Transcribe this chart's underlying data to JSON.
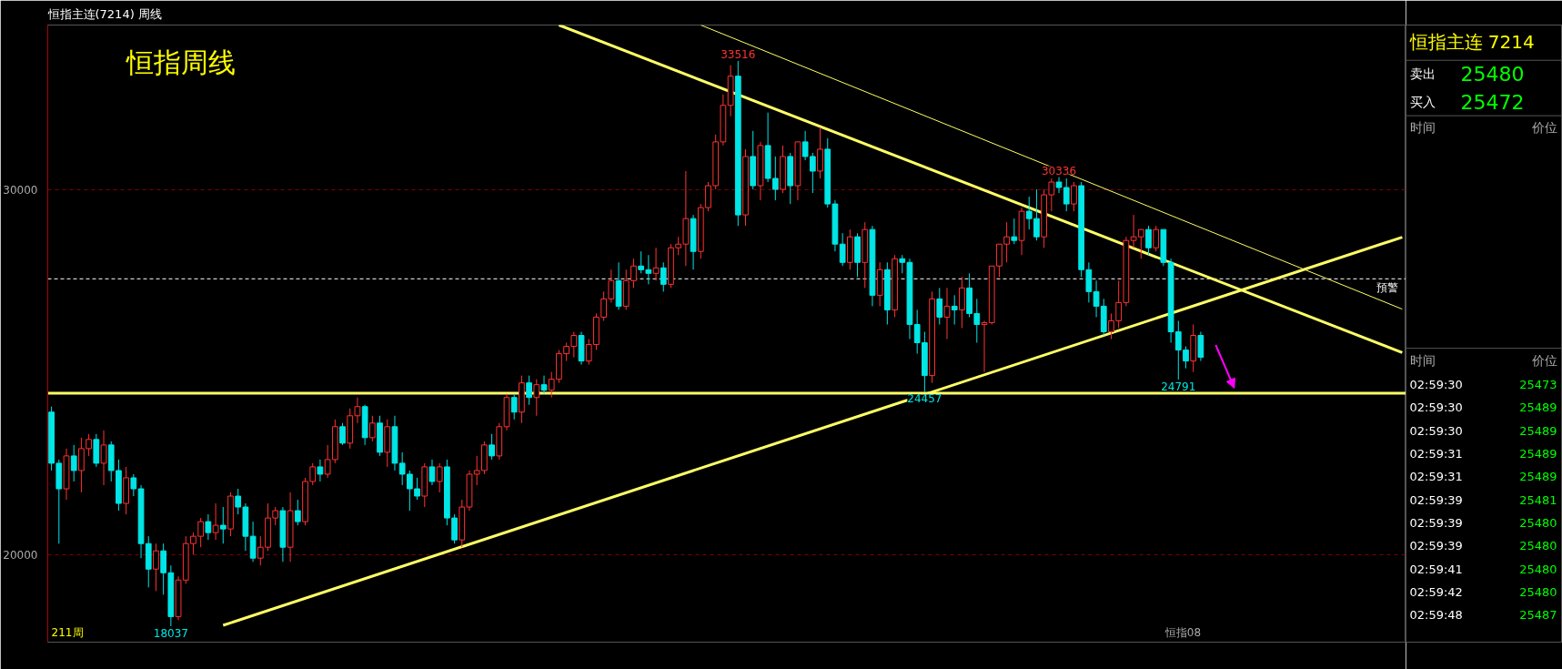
{
  "chart_data": {
    "type": "candlestick",
    "title": "恒指周线",
    "subtitle": "恒指主连(7214)  周线",
    "categories": [
      null,
      null,
      null,
      null,
      null,
      null,
      null,
      null,
      null,
      null,
      null,
      null,
      null,
      null,
      null,
      null,
      null,
      null,
      null,
      null,
      null,
      null,
      null,
      null,
      null,
      null,
      null,
      null,
      null,
      null,
      null,
      null,
      null,
      null,
      null,
      null,
      null,
      null,
      null,
      null,
      null,
      null,
      null,
      null,
      null,
      null,
      null,
      null,
      null,
      null,
      null,
      null,
      null,
      null,
      null,
      null,
      null,
      null,
      null,
      null,
      null,
      null,
      null,
      null,
      null,
      null,
      null,
      null,
      null,
      null,
      null,
      null,
      null,
      null,
      null,
      null,
      null,
      null,
      null,
      null,
      null,
      null,
      null,
      null,
      null,
      null,
      null,
      null,
      null,
      null,
      null,
      null,
      null,
      null,
      null,
      null,
      null,
      null,
      null,
      null,
      null,
      null,
      null,
      null,
      null,
      null,
      null,
      null,
      null,
      null,
      null,
      null,
      null,
      null,
      null,
      null,
      null,
      null,
      null,
      null,
      null,
      null,
      null,
      null,
      null,
      null,
      null,
      null,
      null,
      null,
      null,
      null,
      null,
      null,
      null,
      null,
      null,
      null,
      null,
      null,
      null,
      null,
      null,
      null,
      null,
      null,
      null,
      null,
      null,
      null,
      null,
      null,
      null,
      null,
      null,
      null,
      null,
      null,
      null,
      null,
      null,
      null,
      null,
      null,
      null,
      null,
      null,
      null,
      null,
      null,
      null,
      null,
      null,
      null,
      null,
      null,
      null,
      null,
      null,
      null,
      null,
      null
    ],
    "ohlc": [
      [
        23900,
        24050,
        22300,
        22500
      ],
      [
        22500,
        22600,
        20300,
        21800
      ],
      [
        21800,
        22900,
        21500,
        22700
      ],
      [
        22700,
        23000,
        22000,
        22300
      ],
      [
        22300,
        23200,
        21700,
        22900
      ],
      [
        22900,
        23300,
        22700,
        23150
      ],
      [
        23150,
        23300,
        22400,
        22500
      ],
      [
        22500,
        23400,
        21900,
        23000
      ],
      [
        23000,
        23100,
        22000,
        22300
      ],
      [
        22300,
        22600,
        21200,
        21400
      ],
      [
        21400,
        22400,
        21100,
        22100
      ],
      [
        22100,
        22200,
        21600,
        21800
      ],
      [
        21800,
        21900,
        19900,
        20300
      ],
      [
        20300,
        20500,
        19100,
        19600
      ],
      [
        19600,
        20300,
        19000,
        20100
      ],
      [
        20100,
        20300,
        18900,
        19500
      ],
      [
        19500,
        19700,
        18037,
        18300
      ],
      [
        18300,
        19400,
        18200,
        19300
      ],
      [
        19300,
        20500,
        19200,
        20300
      ],
      [
        20300,
        20600,
        20000,
        20500
      ],
      [
        20500,
        21000,
        20200,
        20900
      ],
      [
        20900,
        21100,
        20400,
        20600
      ],
      [
        20600,
        21400,
        20400,
        20800
      ],
      [
        20800,
        21300,
        20300,
        20700
      ],
      [
        20700,
        21700,
        20500,
        21600
      ],
      [
        21600,
        21800,
        21100,
        21300
      ],
      [
        21300,
        21400,
        20100,
        20500
      ],
      [
        20500,
        20900,
        19800,
        19900
      ],
      [
        19900,
        20500,
        19700,
        20200
      ],
      [
        20200,
        21400,
        20100,
        21000
      ],
      [
        21000,
        21300,
        20800,
        21200
      ],
      [
        21200,
        21300,
        19800,
        20200
      ],
      [
        20200,
        21700,
        19800,
        21200
      ],
      [
        21200,
        21500,
        20800,
        20900
      ],
      [
        20900,
        22100,
        20800,
        22000
      ],
      [
        22000,
        22500,
        21900,
        22400
      ],
      [
        22400,
        22600,
        22000,
        22200
      ],
      [
        22200,
        23000,
        22100,
        22600
      ],
      [
        22600,
        23700,
        22500,
        23500
      ],
      [
        23500,
        23600,
        23000,
        23050
      ],
      [
        23050,
        24000,
        22900,
        23800
      ],
      [
        23800,
        24300,
        23600,
        24050
      ],
      [
        24050,
        24100,
        23000,
        23200
      ],
      [
        23200,
        23800,
        23100,
        23600
      ],
      [
        23600,
        23800,
        22700,
        22800
      ],
      [
        22800,
        23700,
        22400,
        23500
      ],
      [
        23500,
        23800,
        22300,
        22500
      ],
      [
        22500,
        22800,
        21900,
        22200
      ],
      [
        22200,
        22300,
        21200,
        21800
      ],
      [
        21800,
        22100,
        21500,
        21600
      ],
      [
        21600,
        22500,
        21300,
        22400
      ],
      [
        22400,
        22600,
        21900,
        22000
      ],
      [
        22000,
        22500,
        21700,
        22400
      ],
      [
        22400,
        22600,
        20800,
        21000
      ],
      [
        21000,
        21100,
        20300,
        20400
      ],
      [
        20400,
        21500,
        20200,
        21300
      ],
      [
        21300,
        22300,
        21200,
        22200
      ],
      [
        22200,
        22700,
        21900,
        22300
      ],
      [
        22300,
        23100,
        22200,
        23000
      ],
      [
        23000,
        23300,
        22600,
        22700
      ],
      [
        22700,
        23600,
        22600,
        23500
      ],
      [
        23500,
        24400,
        23400,
        24300
      ],
      [
        24300,
        24400,
        23700,
        23900
      ],
      [
        23900,
        24900,
        23600,
        24700
      ],
      [
        24700,
        24900,
        24100,
        24300
      ],
      [
        24300,
        24800,
        23800,
        24650
      ],
      [
        24650,
        24900,
        24400,
        24500
      ],
      [
        24500,
        25000,
        24300,
        24800
      ],
      [
        24800,
        25600,
        24700,
        25500
      ],
      [
        25500,
        25800,
        25300,
        25700
      ],
      [
        25700,
        26100,
        25400,
        26000
      ],
      [
        26000,
        26100,
        25200,
        25300
      ],
      [
        25300,
        25900,
        25200,
        25750
      ],
      [
        25750,
        26600,
        25600,
        26500
      ],
      [
        26500,
        27200,
        26400,
        27000
      ],
      [
        27000,
        27800,
        26900,
        27500
      ],
      [
        27500,
        28000,
        26700,
        26800
      ],
      [
        26800,
        27800,
        26700,
        27500
      ],
      [
        27500,
        28100,
        27300,
        27900
      ],
      [
        27900,
        28300,
        27700,
        27800
      ],
      [
        27800,
        28200,
        27400,
        27700
      ],
      [
        27700,
        28400,
        27500,
        27850
      ],
      [
        27850,
        28000,
        27200,
        27400
      ],
      [
        27400,
        28500,
        27300,
        28400
      ],
      [
        28400,
        28700,
        28200,
        28500
      ],
      [
        28500,
        30500,
        27900,
        29200
      ],
      [
        29200,
        29300,
        27800,
        28300
      ],
      [
        28300,
        29600,
        28100,
        29500
      ],
      [
        29500,
        30200,
        29400,
        30100
      ],
      [
        30100,
        31500,
        30000,
        31300
      ],
      [
        31300,
        32600,
        31200,
        32300
      ],
      [
        32300,
        33400,
        32000,
        33100
      ],
      [
        33100,
        33516,
        29000,
        29300
      ],
      [
        29300,
        31100,
        29000,
        30900
      ],
      [
        30900,
        31600,
        30000,
        30100
      ],
      [
        30100,
        31300,
        29700,
        31200
      ],
      [
        31200,
        32100,
        30200,
        30300
      ],
      [
        30300,
        30900,
        29700,
        30000
      ],
      [
        30000,
        31200,
        29900,
        30900
      ],
      [
        30900,
        31000,
        29600,
        30100
      ],
      [
        30100,
        31300,
        29700,
        31300
      ],
      [
        31300,
        31600,
        30800,
        30900
      ],
      [
        30900,
        31000,
        29900,
        30500
      ],
      [
        30500,
        31700,
        30300,
        31100
      ],
      [
        31100,
        31400,
        29500,
        29600
      ],
      [
        29600,
        29700,
        28300,
        28500
      ],
      [
        28500,
        28800,
        27900,
        28000
      ],
      [
        28000,
        28900,
        27800,
        28700
      ],
      [
        28700,
        28800,
        27600,
        28000
      ],
      [
        28000,
        29100,
        27300,
        28900
      ],
      [
        28900,
        29000,
        26800,
        27100
      ],
      [
        27100,
        28000,
        26800,
        27800
      ],
      [
        27800,
        28000,
        26300,
        26700
      ],
      [
        26700,
        28200,
        26500,
        28100
      ],
      [
        28100,
        28200,
        27700,
        28000
      ],
      [
        28000,
        28100,
        25900,
        26300
      ],
      [
        26300,
        26700,
        25500,
        25800
      ],
      [
        25800,
        26100,
        24457,
        24900
      ],
      [
        24900,
        27200,
        24700,
        27000
      ],
      [
        27000,
        27300,
        26300,
        26500
      ],
      [
        26500,
        27300,
        25900,
        26800
      ],
      [
        26800,
        27100,
        26300,
        26700
      ],
      [
        26700,
        27600,
        26200,
        27300
      ],
      [
        27300,
        27700,
        26500,
        26600
      ],
      [
        26600,
        27000,
        25800,
        26300
      ],
      [
        26300,
        26400,
        25000,
        26350
      ],
      [
        26350,
        27900,
        26300,
        27900
      ],
      [
        27900,
        28500,
        27600,
        28500
      ],
      [
        28500,
        29100,
        28000,
        28700
      ],
      [
        28700,
        29200,
        28500,
        28600
      ],
      [
        28600,
        29500,
        28200,
        29400
      ],
      [
        29400,
        29800,
        28900,
        29200
      ],
      [
        29200,
        30000,
        28600,
        28700
      ],
      [
        28700,
        30000,
        28400,
        29850
      ],
      [
        29850,
        30300,
        29400,
        30200
      ],
      [
        30200,
        30336,
        29900,
        30050
      ],
      [
        30050,
        30300,
        29400,
        29600
      ],
      [
        29600,
        30200,
        29400,
        30100
      ],
      [
        30100,
        30200,
        27600,
        27800
      ],
      [
        27800,
        28000,
        26900,
        27200
      ],
      [
        27200,
        27500,
        26500,
        26800
      ],
      [
        26800,
        27000,
        26000,
        26100
      ],
      [
        26100,
        26600,
        25900,
        26400
      ],
      [
        26400,
        27500,
        26200,
        26900
      ],
      [
        26900,
        28700,
        26800,
        28600
      ],
      [
        28600,
        29300,
        28400,
        28700
      ],
      [
        28700,
        28900,
        28100,
        28900
      ],
      [
        28900,
        29000,
        28200,
        28400
      ],
      [
        28400,
        29000,
        28300,
        28900
      ],
      [
        28900,
        28900,
        27900,
        28000
      ],
      [
        28000,
        28100,
        25800,
        26100
      ],
      [
        26100,
        26400,
        24791,
        25600
      ],
      [
        25600,
        25700,
        25100,
        25300
      ],
      [
        25300,
        26300,
        25000,
        26000
      ],
      [
        26000,
        26100,
        25300,
        25400
      ],
      null,
      null,
      null,
      null,
      null,
      null,
      null,
      null,
      null,
      null,
      null,
      null,
      null,
      null,
      null,
      null,
      null,
      null,
      null,
      null,
      null,
      null,
      null,
      null,
      null,
      null,
      null
    ],
    "colors": [
      "#00e5e5",
      "#00e5e5",
      "#ff3232",
      "#00e5e5",
      "#ff3232",
      "#ff3232",
      "#00e5e5",
      "#ff3232",
      "#00e5e5",
      "#00e5e5",
      "#ff3232",
      "#00e5e5",
      "#00e5e5",
      "#00e5e5",
      "#ff3232",
      "#00e5e5",
      "#00e5e5",
      "#ff3232",
      "#ff3232",
      "#ff3232",
      "#ff3232",
      "#00e5e5",
      "#ff3232",
      "#00e5e5",
      "#ff3232",
      "#00e5e5",
      "#00e5e5",
      "#00e5e5",
      "#ff3232",
      "#ff3232",
      "#ff3232",
      "#00e5e5",
      "#ff3232",
      "#00e5e5",
      "#ff3232",
      "#ff3232",
      "#00e5e5",
      "#ff3232",
      "#ff3232",
      "#00e5e5",
      "#ff3232",
      "#ff3232",
      "#00e5e5",
      "#ff3232",
      "#00e5e5",
      "#ff3232",
      "#00e5e5",
      "#00e5e5",
      "#00e5e5",
      "#00e5e5",
      "#ff3232",
      "#00e5e5",
      "#ff3232",
      "#00e5e5",
      "#00e5e5",
      "#ff3232",
      "#ff3232",
      "#ff3232",
      "#ff3232",
      "#00e5e5",
      "#ff3232",
      "#ff3232",
      "#00e5e5",
      "#ff3232",
      "#00e5e5",
      "#ff3232",
      "#00e5e5",
      "#ff3232",
      "#ff3232",
      "#ff3232",
      "#ff3232",
      "#00e5e5",
      "#ff3232",
      "#ff3232",
      "#ff3232",
      "#ff3232",
      "#00e5e5",
      "#ff3232",
      "#ff3232",
      "#00e5e5",
      "#00e5e5",
      "#ff3232",
      "#00e5e5",
      "#ff3232",
      "#ff3232",
      "#ff3232",
      "#00e5e5",
      "#ff3232",
      "#ff3232",
      "#ff3232",
      "#ff3232",
      "#ff3232",
      "#00e5e5",
      "#ff3232",
      "#00e5e5",
      "#ff3232",
      "#00e5e5",
      "#00e5e5",
      "#ff3232",
      "#00e5e5",
      "#ff3232",
      "#00e5e5",
      "#00e5e5",
      "#ff3232",
      "#00e5e5",
      "#00e5e5",
      "#00e5e5",
      "#ff3232",
      "#00e5e5",
      "#ff3232",
      "#00e5e5",
      "#ff3232",
      "#00e5e5",
      "#ff3232",
      "#00e5e5",
      "#00e5e5",
      "#00e5e5",
      "#00e5e5",
      "#ff3232",
      "#00e5e5",
      "#ff3232",
      "#00e5e5",
      "#ff3232",
      "#00e5e5",
      "#00e5e5",
      "#ff3232",
      "#ff3232",
      "#ff3232",
      "#ff3232",
      "#00e5e5",
      "#ff3232",
      "#00e5e5",
      "#00e5e5",
      "#ff3232",
      "#ff3232",
      "#00e5e5",
      "#00e5e5",
      "#ff3232",
      "#00e5e5",
      "#00e5e5",
      "#00e5e5",
      "#00e5e5",
      "#ff3232",
      "#ff3232",
      "#ff3232",
      "#ff3232",
      "#ff3232",
      "#00e5e5",
      "#ff3232",
      "#00e5e5",
      "#00e5e5",
      "#00e5e5",
      "#00e5e5",
      "#ff3232",
      "#00e5e5",
      null,
      null,
      null,
      null,
      null,
      null,
      null,
      null,
      null,
      null,
      null,
      null,
      null,
      null,
      null,
      null,
      null,
      null,
      null,
      null,
      null,
      null,
      null,
      null,
      null,
      null,
      null
    ],
    "series": [
      {
        "type": "line",
        "color": "#ffff66",
        "values": [
          null,
          null,
          null,
          null,
          null,
          null,
          null,
          null,
          null,
          null,
          null,
          null,
          null,
          null,
          null,
          null,
          null,
          null,
          null,
          null,
          null,
          null,
          null,
          null,
          null,
          null,
          null,
          null,
          null,
          null,
          null,
          null,
          null,
          null,
          null,
          null,
          null,
          null,
          null,
          null,
          null,
          null,
          null,
          null,
          null,
          null,
          null,
          null,
          null,
          null,
          null,
          null,
          null,
          null,
          null,
          null,
          null,
          null,
          null,
          null,
          null,
          null,
          null,
          null,
          null,
          null,
          null,
          null,
          34500,
          null,
          null,
          null,
          null,
          null,
          null,
          null,
          null,
          null,
          null,
          null,
          null,
          null,
          null,
          null,
          null,
          null,
          null,
          null,
          null,
          null,
          null,
          null,
          null,
          null,
          null,
          null,
          null,
          null,
          null,
          null,
          null,
          null,
          null,
          null,
          null,
          null,
          null,
          null,
          null,
          null,
          null,
          null,
          null,
          null,
          null,
          null,
          null,
          null,
          null,
          null,
          null,
          null,
          null,
          null,
          null,
          null,
          null,
          null,
          null,
          null,
          null,
          null,
          null,
          null,
          null,
          null,
          null,
          null,
          null,
          null,
          null,
          null,
          null,
          null,
          null,
          null,
          null,
          null,
          null,
          null,
          null,
          null,
          null,
          null,
          null,
          null,
          null,
          null,
          null,
          null,
          null,
          null,
          null,
          null,
          null,
          null,
          null,
          null,
          null,
          null,
          null,
          null,
          null,
          null,
          null,
          null,
          null,
          null,
          null,
          null,
          null,
          25530
        ]
      },
      {
        "type": "line",
        "color": "#ffff66",
        "values": [
          null,
          null,
          null,
          null,
          null,
          null,
          null,
          null,
          null,
          null,
          null,
          null,
          null,
          null,
          null,
          null,
          null,
          null,
          null,
          null,
          null,
          null,
          null,
          null,
          null,
          null,
          null,
          null,
          null,
          null,
          null,
          null,
          null,
          null,
          null,
          null,
          null,
          null,
          null,
          null,
          null,
          null,
          null,
          null,
          null,
          null,
          null,
          null,
          null,
          null,
          null,
          null,
          null,
          null,
          null,
          null,
          null,
          null,
          null,
          null,
          null,
          null,
          null,
          null,
          null,
          null,
          null,
          null,
          null,
          null,
          null,
          null,
          null,
          null,
          null,
          null,
          null,
          null,
          null,
          null,
          null,
          null,
          null,
          null,
          null,
          null,
          null,
          34500,
          null,
          null,
          null,
          null,
          null,
          null,
          null,
          null,
          null,
          null,
          null,
          null,
          null,
          null,
          null,
          null,
          null,
          null,
          null,
          null,
          null,
          null,
          null,
          null,
          null,
          null,
          null,
          null,
          null,
          null,
          null,
          null,
          null,
          null,
          null,
          null,
          null,
          null,
          null,
          null,
          null,
          null,
          null,
          null,
          null,
          null,
          null,
          null,
          null,
          null,
          null,
          null,
          null,
          null,
          null,
          null,
          null,
          null,
          null,
          null,
          null,
          null,
          null,
          null,
          null,
          null,
          null,
          null,
          null,
          null,
          null,
          null,
          null,
          null,
          null,
          null,
          null,
          null,
          null,
          null,
          null,
          null,
          null,
          null,
          null,
          null,
          null,
          null,
          null,
          null,
          null,
          null,
          null,
          26720
        ]
      },
      {
        "type": "line",
        "color": "#ffff66",
        "values": [
          null,
          null,
          null,
          null,
          null,
          null,
          null,
          null,
          null,
          null,
          null,
          null,
          null,
          null,
          null,
          null,
          null,
          null,
          null,
          null,
          null,
          null,
          null,
          18060,
          null,
          null,
          null,
          null,
          null,
          null,
          null,
          null,
          null,
          null,
          null,
          null,
          null,
          null,
          null,
          null,
          null,
          null,
          null,
          null,
          null,
          null,
          null,
          null,
          null,
          null,
          null,
          null,
          null,
          null,
          null,
          null,
          null,
          null,
          null,
          null,
          null,
          null,
          null,
          null,
          null,
          null,
          null,
          null,
          null,
          null,
          null,
          null,
          null,
          null,
          null,
          null,
          null,
          null,
          null,
          null,
          null,
          null,
          null,
          null,
          null,
          null,
          null,
          null,
          null,
          null,
          null,
          null,
          null,
          null,
          null,
          null,
          null,
          null,
          null,
          null,
          null,
          null,
          null,
          null,
          null,
          null,
          null,
          null,
          null,
          null,
          null,
          null,
          null,
          null,
          null,
          null,
          null,
          null,
          null,
          null,
          null,
          null,
          null,
          null,
          null,
          null,
          null,
          null,
          null,
          null,
          null,
          null,
          null,
          null,
          null,
          null,
          null,
          null,
          null,
          null,
          null,
          null,
          null,
          null,
          null,
          null,
          null,
          null,
          null,
          null,
          null,
          null,
          null,
          null,
          null,
          null,
          null,
          null,
          null,
          null,
          null,
          null,
          null,
          null,
          null,
          null,
          null,
          null,
          null,
          null,
          null,
          null,
          null,
          null,
          null,
          null,
          null,
          null,
          null,
          null,
          null,
          28690
        ]
      }
    ],
    "ylim": [
      17600,
      34500
    ],
    "yticks": [
      20000,
      30000
    ],
    "grid": "y",
    "tick_labels": "y",
    "ref_lines": [
      {
        "axis": "y",
        "value": 24420,
        "color": "#ffff66",
        "line_style": "solid"
      },
      {
        "axis": "y",
        "value": 27550,
        "label": "預警",
        "color": "#ffffff",
        "line_style": "dashed"
      }
    ],
    "annotations": [
      {
        "text": "33516",
        "y": 33516
      },
      {
        "text": "30336",
        "y": 30336
      },
      {
        "text": "24457",
        "y": 24457
      },
      {
        "text": "24791",
        "y": 24791
      },
      {
        "text": "18037",
        "y": 18037
      },
      "211周",
      "恒指08",
      "恒指主连 7214",
      "卖出",
      "25480",
      "买入",
      "25472",
      "时间",
      "价位",
      "时间",
      "价位",
      "02:59:30",
      "25473",
      "02:59:30",
      "25489",
      "02:59:30",
      "25489",
      "02:59:31",
      "25489",
      "02:59:31",
      "25489",
      "02:59:39",
      "25481",
      "02:59:39",
      "25480",
      "02:59:39",
      "25480",
      "02:59:41",
      "25480",
      "02:59:42",
      "25480",
      "02:59:48",
      "25487"
    ]
  }
}
